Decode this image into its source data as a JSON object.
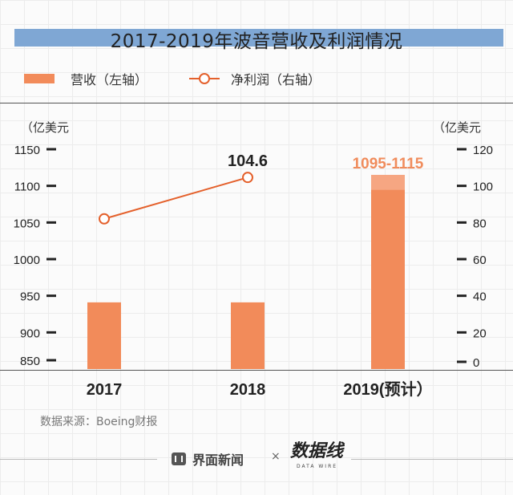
{
  "title": "2017-2019年波音营收及利润情况",
  "legend": {
    "bar_label": "营收（左轴）",
    "line_label": "净利润（右轴）"
  },
  "units": {
    "left": "（亿美元",
    "right": "（亿美元"
  },
  "source": "数据来源：Boeing财报",
  "footer": {
    "brand": "界面新闻",
    "separator": "×",
    "partner_logo": "数据线",
    "partner_sub": "DATA WIRE"
  },
  "colors": {
    "bar": "#f28b5a",
    "bar_range": "#f6a682",
    "line": "#e4602b",
    "range_label": "#f08c5c"
  },
  "chart_data": {
    "type": "bar",
    "categories": [
      "2017",
      "2018",
      "2019(预计）"
    ],
    "series": [
      {
        "name": "营收",
        "axis": "left",
        "type": "bar",
        "values": [
          941,
          941,
          1095
        ],
        "range_top": [
          null,
          null,
          1115
        ]
      },
      {
        "name": "净利润",
        "axis": "right",
        "type": "line",
        "values": [
          82,
          104.6,
          null
        ]
      }
    ],
    "data_labels": {
      "line_2018": "104.6",
      "bar_2019": "1095-1115"
    },
    "y_left": {
      "ticks": [
        "1150",
        "1100",
        "1050",
        "1000",
        "950",
        "900",
        "850"
      ],
      "tick_values": [
        1150,
        1100,
        1050,
        1000,
        950,
        900,
        850
      ]
    },
    "y_right": {
      "ticks": [
        "120",
        "100",
        "80",
        "60",
        "40",
        "20",
        "0"
      ],
      "tick_values": [
        120,
        100,
        80,
        60,
        40,
        20,
        0
      ]
    },
    "grid": false,
    "legend_position": "top-left"
  }
}
